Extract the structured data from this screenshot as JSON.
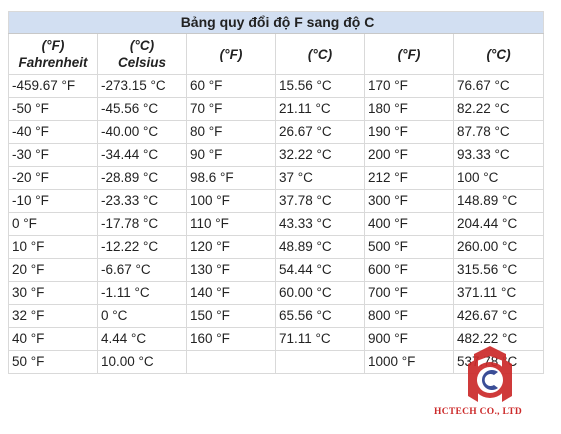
{
  "table": {
    "title": "Bảng quy đổi độ F sang độ C",
    "headers": [
      {
        "unit": "(°F)",
        "name": "Fahrenheit"
      },
      {
        "unit": "(°C)",
        "name": "Celsius"
      },
      {
        "unit": "(°F)",
        "name": ""
      },
      {
        "unit": "(°C)",
        "name": ""
      },
      {
        "unit": "(°F)",
        "name": ""
      },
      {
        "unit": "(°C)",
        "name": ""
      }
    ],
    "rows": [
      [
        "-459.67 °F",
        "-273.15 °C",
        "60 °F",
        "15.56 °C",
        "170 °F",
        "76.67 °C"
      ],
      [
        "-50 °F",
        "-45.56 °C",
        "70 °F",
        "21.11 °C",
        "180 °F",
        "82.22 °C"
      ],
      [
        "-40 °F",
        "-40.00 °C",
        "80 °F",
        "26.67 °C",
        "190 °F",
        "87.78 °C"
      ],
      [
        "-30 °F",
        "-34.44 °C",
        "90 °F",
        "32.22 °C",
        "200 °F",
        "93.33 °C"
      ],
      [
        "-20 °F",
        "-28.89 °C",
        "98.6 °F",
        "37 °C",
        "212 °F",
        "100 °C"
      ],
      [
        "-10 °F",
        "-23.33 °C",
        "100 °F",
        "37.78 °C",
        "300 °F",
        "148.89 °C"
      ],
      [
        "0 °F",
        "-17.78 °C",
        "110 °F",
        "43.33 °C",
        "400 °F",
        "204.44 °C"
      ],
      [
        "10 °F",
        "-12.22 °C",
        "120 °F",
        "48.89 °C",
        "500 °F",
        "260.00 °C"
      ],
      [
        "20 °F",
        "-6.67 °C",
        "130 °F",
        "54.44 °C",
        "600 °F",
        "315.56 °C"
      ],
      [
        "30 °F",
        "-1.11 °C",
        "140 °F",
        "60.00 °C",
        "700 °F",
        "371.11 °C"
      ],
      [
        "32 °F",
        "0 °C",
        "150 °F",
        "65.56 °C",
        "800 °F",
        "426.67 °C"
      ],
      [
        "40 °F",
        "4.44 °C",
        "160 °F",
        "71.11 °C",
        "900 °F",
        "482.22 °C"
      ],
      [
        "50 °F",
        "10.00 °C",
        "",
        "",
        "1000 °F",
        "537.78 °C"
      ]
    ]
  },
  "watermark": {
    "company": "HCTECH CO., LTD",
    "colors": {
      "red": "#cc2a2a",
      "blue": "#2b3f8f"
    }
  },
  "theme": {
    "title_bg": "#d2dff2",
    "outer_border": "#e0505a",
    "grid_line": "#d9d9d9"
  }
}
